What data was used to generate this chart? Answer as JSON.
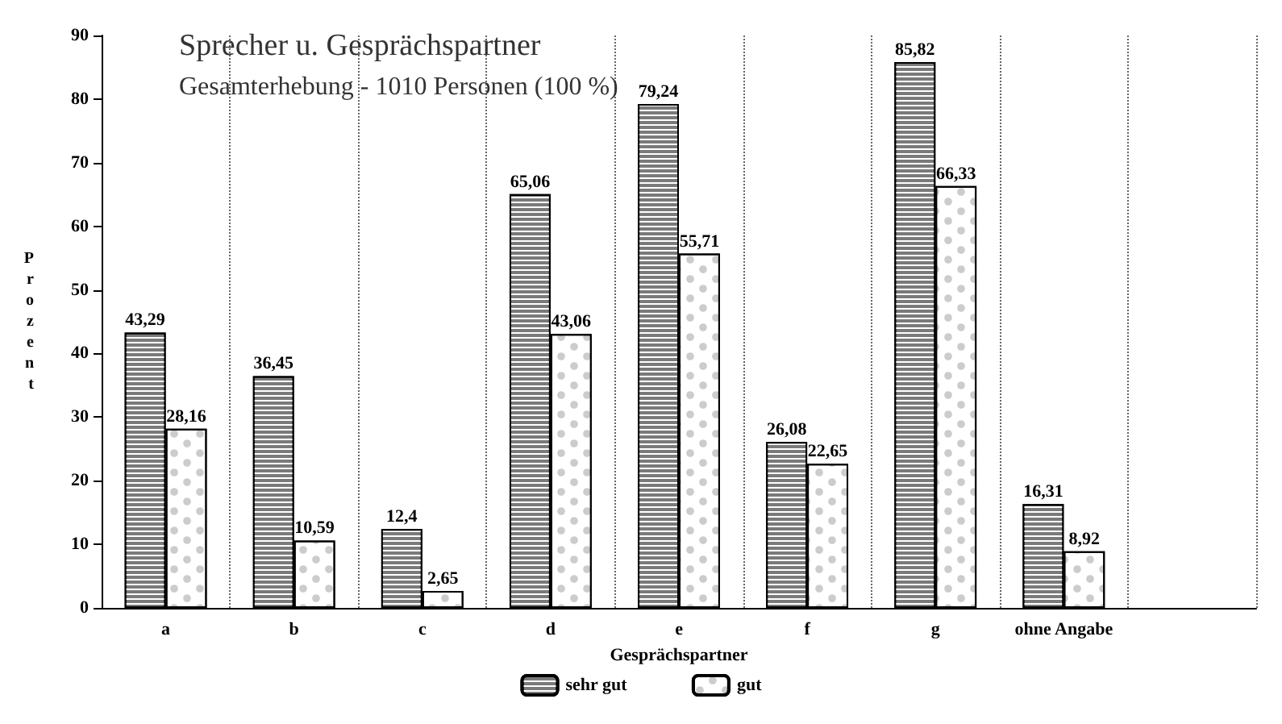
{
  "chart_data": {
    "type": "bar",
    "title": "Sprecher u. Gesprächspartner",
    "subtitle": "Gesamterhebung - 1010 Personen (100 %)",
    "xlabel": "Gesprächspartner",
    "ylabel": "Prozent",
    "categories": [
      "a",
      "b",
      "c",
      "d",
      "e",
      "f",
      "g",
      "ohne Angabe",
      null
    ],
    "series": [
      {
        "name": "sehr gut",
        "color": "#7a7a7a",
        "values": [
          43.29,
          36.45,
          12.4,
          65.06,
          79.24,
          26.08,
          85.82,
          16.31,
          null
        ],
        "value_labels": [
          "43,29",
          "36,45",
          "12,4",
          "65,06",
          "79,24",
          "26,08",
          "85,82",
          "16,31",
          null
        ]
      },
      {
        "name": "gut",
        "color": "#ffffff",
        "values": [
          28.16,
          10.59,
          2.65,
          43.06,
          55.71,
          22.65,
          66.33,
          8.92,
          null
        ],
        "value_labels": [
          "28,16",
          "10,59",
          "2,65",
          "43,06",
          "55,71",
          "22,65",
          "66,33",
          "8,92",
          null
        ]
      }
    ],
    "ylim": [
      0,
      90
    ],
    "yticks": [
      0,
      10,
      20,
      30,
      40,
      50,
      60,
      70,
      80,
      90
    ],
    "grid": "x",
    "legend": "bottom"
  }
}
